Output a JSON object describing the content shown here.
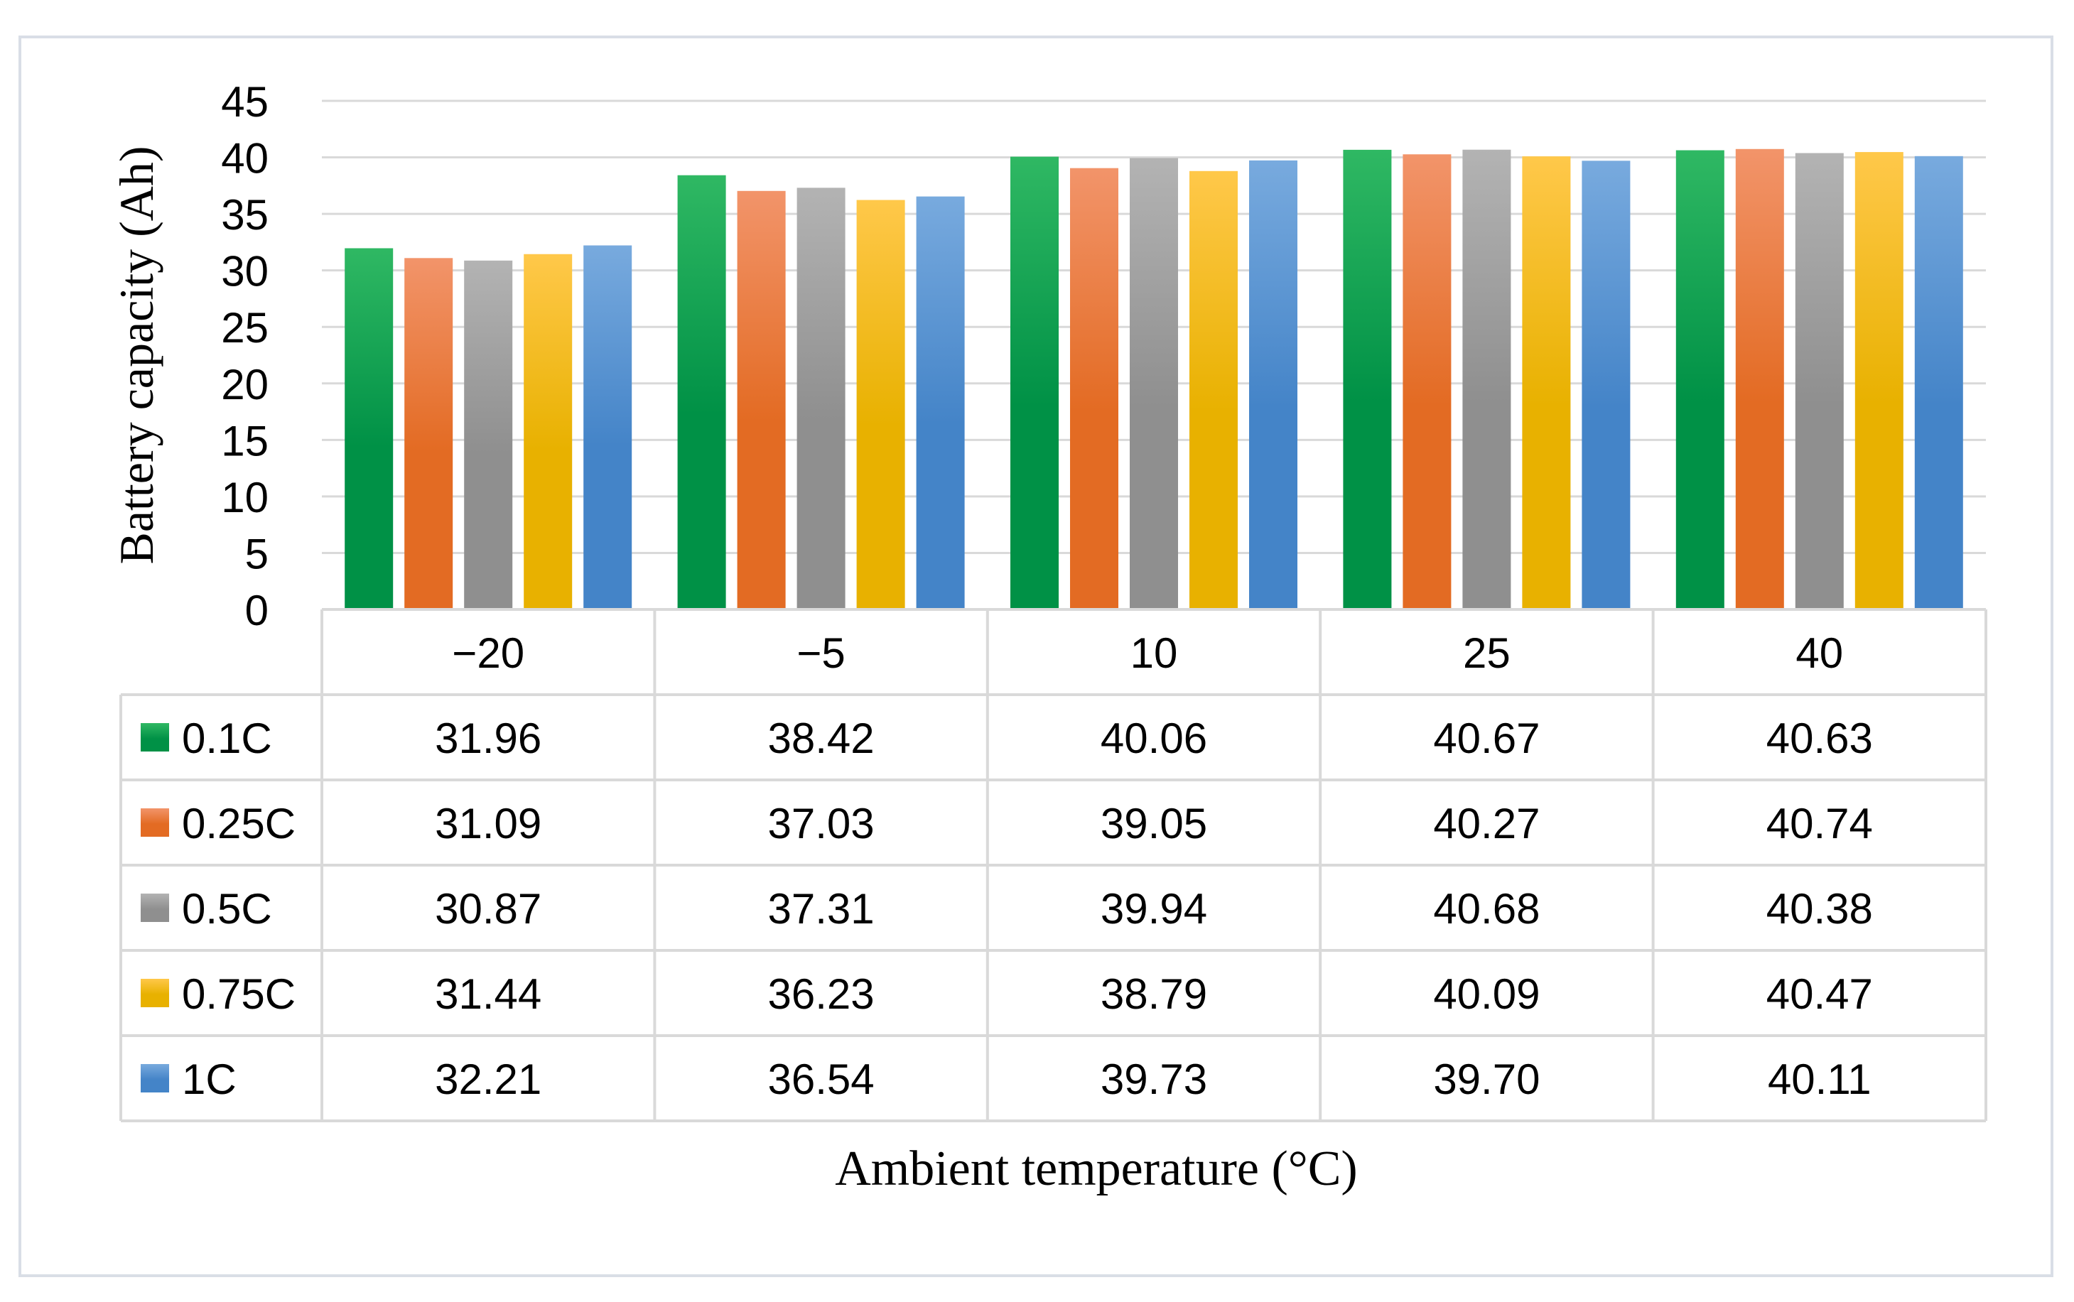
{
  "chart_data": {
    "type": "bar",
    "title": "",
    "xlabel": "Ambient temperature (°C)",
    "ylabel": "Battery capacity (Ah)",
    "ylim": [
      0,
      45
    ],
    "yticks": [
      0,
      5,
      10,
      15,
      20,
      25,
      30,
      35,
      40,
      45
    ],
    "grid": true,
    "legend": "data-table-rows",
    "categories": [
      "−20",
      "−5",
      "10",
      "25",
      "40"
    ],
    "series": [
      {
        "name": "0.1C",
        "color_top": "#2fb863",
        "color_bottom": "#009146",
        "values": [
          31.96,
          38.42,
          40.06,
          40.67,
          40.63
        ],
        "labels": [
          "31.96",
          "38.42",
          "40.06",
          "40.67",
          "40.63"
        ]
      },
      {
        "name": "0.25C",
        "color_top": "#f2946a",
        "color_bottom": "#e36b23",
        "values": [
          31.09,
          37.03,
          39.05,
          40.27,
          40.74
        ],
        "labels": [
          "31.09",
          "37.03",
          "39.05",
          "40.27",
          "40.74"
        ]
      },
      {
        "name": "0.5C",
        "color_top": "#b3b3b3",
        "color_bottom": "#8f8f8f",
        "values": [
          30.87,
          37.31,
          39.94,
          40.68,
          40.38
        ],
        "labels": [
          "30.87",
          "37.31",
          "39.94",
          "40.68",
          "40.38"
        ]
      },
      {
        "name": "0.75C",
        "color_top": "#ffc84a",
        "color_bottom": "#e8b100",
        "values": [
          31.44,
          36.23,
          38.79,
          40.09,
          40.47
        ],
        "labels": [
          "31.44",
          "36.23",
          "38.79",
          "40.09",
          "40.47"
        ]
      },
      {
        "name": "1C",
        "color_top": "#78aade",
        "color_bottom": "#4484c8",
        "values": [
          32.21,
          36.54,
          39.73,
          39.7,
          40.11
        ],
        "labels": [
          "32.21",
          "36.54",
          "39.73",
          "39.70",
          "40.11"
        ]
      }
    ]
  },
  "colors": {
    "grid": "#d9d9d9",
    "table_border": "#d9d9d9",
    "frame": "#d9dee6",
    "text": "#000000"
  }
}
